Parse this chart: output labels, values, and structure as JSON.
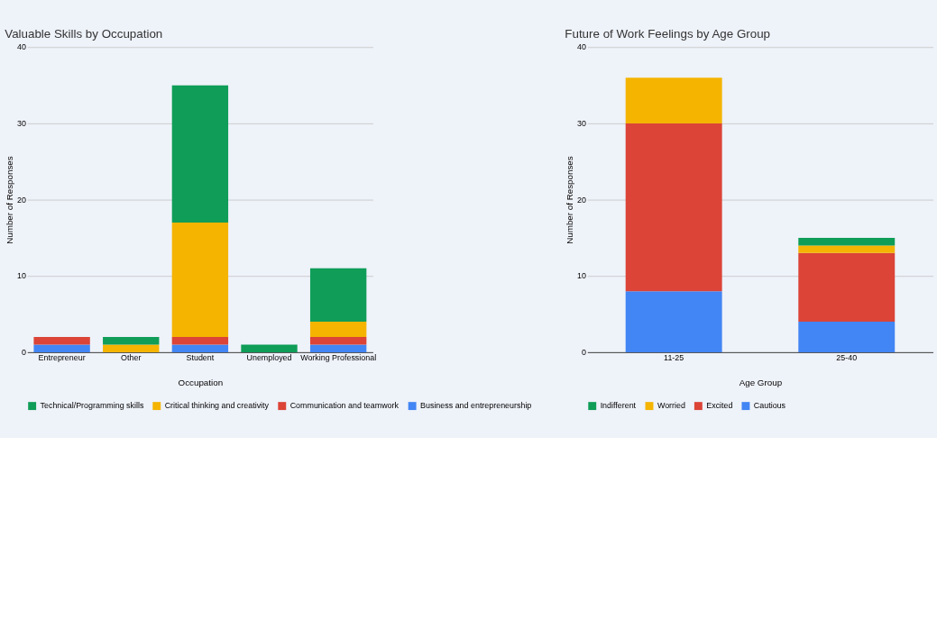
{
  "chart_data": [
    {
      "type": "bar",
      "title": "Valuable Skills by Occupation",
      "xlabel": "Occupation",
      "ylabel": "Number of Responses",
      "categories": [
        "Entrepreneur",
        "Other",
        "Student",
        "Unemployed",
        "Working Professional"
      ],
      "stacked": true,
      "ylim": [
        0,
        40
      ],
      "yticks": [
        0,
        10,
        20,
        30,
        40
      ],
      "grid": "y",
      "legend": "bottom",
      "series": [
        {
          "name": "Business and entrepreneurship",
          "color": "#4285f4",
          "values": [
            1,
            0,
            1,
            0,
            1
          ]
        },
        {
          "name": "Communication and teamwork",
          "color": "#db4437",
          "values": [
            1,
            0,
            1,
            0,
            1
          ]
        },
        {
          "name": "Critical thinking and creativity",
          "color": "#f4b400",
          "values": [
            0,
            1,
            15,
            0,
            2
          ]
        },
        {
          "name": "Technical/Programming skills",
          "color": "#0f9d58",
          "values": [
            0,
            1,
            18,
            1,
            7
          ]
        }
      ]
    },
    {
      "type": "bar",
      "title": "Future of Work Feelings by Age Group",
      "xlabel": "Age Group",
      "ylabel": "Number of Responses",
      "categories": [
        "11-25",
        "25-40"
      ],
      "stacked": true,
      "ylim": [
        0,
        40
      ],
      "yticks": [
        0,
        10,
        20,
        30,
        40
      ],
      "grid": "y",
      "legend": "bottom",
      "series": [
        {
          "name": "Cautious",
          "color": "#4285f4",
          "values": [
            8,
            4
          ]
        },
        {
          "name": "Excited",
          "color": "#db4437",
          "values": [
            22,
            9
          ]
        },
        {
          "name": "Worried",
          "color": "#f4b400",
          "values": [
            6,
            1
          ]
        },
        {
          "name": "Indifferent",
          "color": "#0f9d58",
          "values": [
            0,
            1
          ]
        }
      ]
    }
  ]
}
